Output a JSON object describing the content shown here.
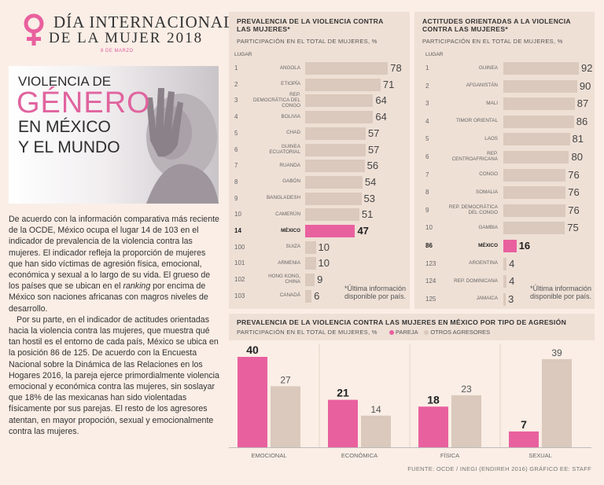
{
  "header": {
    "title_line1": "DÍA INTERNACIONAL",
    "title_line2": "DE LA MUJER 2018",
    "date": "8 DE MARZO",
    "accent": "#e9609f"
  },
  "hero": {
    "line1": "VIOLENCIA DE",
    "line2": "GÉNERO",
    "line3": "EN MÉXICO",
    "line4": "Y EL MUNDO"
  },
  "body": {
    "p1_a": "De acuerdo con la información comparativa más reciente de la OCDE, México ocupa el lugar 14 de 103 en el indicador de prevalencia de la violencia contra las mujeres. El indicador refleja la proporción de mujeres que han sido víctimas de agresión física, emocional, económica y sexual a lo largo de su vida. El grueso de los países que se ubican en el ",
    "p1_em": "ranking",
    "p1_b": " por encima de México son naciones africanas con magros niveles de desarrollo.",
    "p2": "Por su parte, en el indicador de actitudes orientadas hacia la violencia contra las mujeres, que muestra qué tan hostil es el entorno de cada país, México se ubica en la posición 86 de 125. De acuerdo con la Encuesta Nacional sobre la Dinámica de las Relaciones en los Hogares 2016, la pareja ejerce primordialmente violencia emocional y económica contra las mujeres, sin soslayar que 18% de las mexicanas han sido violentadas físicamente por sus parejas. El resto de los agresores atentan, en mayor propoción, sexual y emocionalmente contra las mujeres."
  },
  "chart_data": [
    {
      "type": "bar",
      "orientation": "horizontal",
      "title": "PREVALENCIA DE LA VIOLENCIA CONTRA LAS MUJERES*",
      "subtitle": "PARTICIPACIÓN EN EL TOTAL DE MUJERES, %",
      "rank_label": "LUGAR",
      "xlim": [
        0,
        80
      ],
      "rows": [
        {
          "rank": "1",
          "name": "ANGOLA",
          "value": 78
        },
        {
          "rank": "2",
          "name": "ETIOPÍA",
          "value": 71
        },
        {
          "rank": "3",
          "name": "REP. DEMOCRÁTICA DEL CONGO",
          "value": 64
        },
        {
          "rank": "4",
          "name": "BOLIVIA",
          "value": 64
        },
        {
          "rank": "5",
          "name": "CHAD",
          "value": 57
        },
        {
          "rank": "6",
          "name": "GUINEA ECUATORIAL",
          "value": 57
        },
        {
          "rank": "7",
          "name": "RUANDA",
          "value": 56
        },
        {
          "rank": "8",
          "name": "GABÓN",
          "value": 54
        },
        {
          "rank": "9",
          "name": "BANGLADESH",
          "value": 53
        },
        {
          "rank": "10",
          "name": "CAMERÚN",
          "value": 51
        },
        {
          "rank": "14",
          "name": "MÉXICO",
          "value": 47,
          "highlight": true
        },
        {
          "rank": "100",
          "name": "SUIZA",
          "value": 10
        },
        {
          "rank": "101",
          "name": "ARMENIA",
          "value": 10
        },
        {
          "rank": "102",
          "name": "HONG KONG, CHINA",
          "value": 9
        },
        {
          "rank": "103",
          "name": "CANADÁ",
          "value": 6
        }
      ],
      "note": "*Última información disponible por país."
    },
    {
      "type": "bar",
      "orientation": "horizontal",
      "title": "ACTITUDES ORIENTADAS A LA VIOLENCIA CONTRA LAS MUJERES*",
      "subtitle": "PARTICIPACIÓN EN EL TOTAL DE MUJERES, %",
      "rank_label": "LUGAR",
      "xlim": [
        0,
        92
      ],
      "rows": [
        {
          "rank": "1",
          "name": "GUINEA",
          "value": 92
        },
        {
          "rank": "2",
          "name": "AFGANISTÁN",
          "value": 90
        },
        {
          "rank": "3",
          "name": "MALI",
          "value": 87
        },
        {
          "rank": "4",
          "name": "TIMOR ORIENTAL",
          "value": 86
        },
        {
          "rank": "5",
          "name": "LAOS",
          "value": 81
        },
        {
          "rank": "6",
          "name": "REP. CENTROAFRICANA",
          "value": 80
        },
        {
          "rank": "7",
          "name": "CONGO",
          "value": 76
        },
        {
          "rank": "8",
          "name": "SOMALIA",
          "value": 76
        },
        {
          "rank": "9",
          "name": "REP. DEMOCRÁTICA DEL CONGO",
          "value": 76
        },
        {
          "rank": "10",
          "name": "GAMBIA",
          "value": 75
        },
        {
          "rank": "86",
          "name": "MÉXICO",
          "value": 16,
          "highlight": true
        },
        {
          "rank": "123",
          "name": "ARGENTINA",
          "value": 4
        },
        {
          "rank": "124",
          "name": "REP. DOMINICANA",
          "value": 4
        },
        {
          "rank": "125",
          "name": "JAMAICA",
          "value": 3
        }
      ],
      "note": "*Última información disponible por país."
    },
    {
      "type": "bar",
      "orientation": "vertical",
      "title": "PREVALENCIA DE LA VIOLENCIA CONTRA LAS MUJERES EN MÉXICO POR TIPO DE AGRESIÓN",
      "subtitle": "PARTICIPACIÓN EN EL TOTAL DE MUJERES, %",
      "ylim": [
        0,
        40
      ],
      "categories": [
        "EMOCIONAL",
        "ECONÓMICA",
        "FÍSICA",
        "SEXUAL"
      ],
      "series": [
        {
          "name": "PAREJA",
          "color": "#e9609f",
          "values": [
            40,
            21,
            18,
            7
          ]
        },
        {
          "name": "OTROS AGRESORES",
          "color": "#dac9bc",
          "values": [
            27,
            14,
            23,
            39
          ]
        }
      ]
    }
  ],
  "source": "FUENTE: OCDE / INEGI (ENDIREH 2016)  GRÁFICO EE: STAFF"
}
